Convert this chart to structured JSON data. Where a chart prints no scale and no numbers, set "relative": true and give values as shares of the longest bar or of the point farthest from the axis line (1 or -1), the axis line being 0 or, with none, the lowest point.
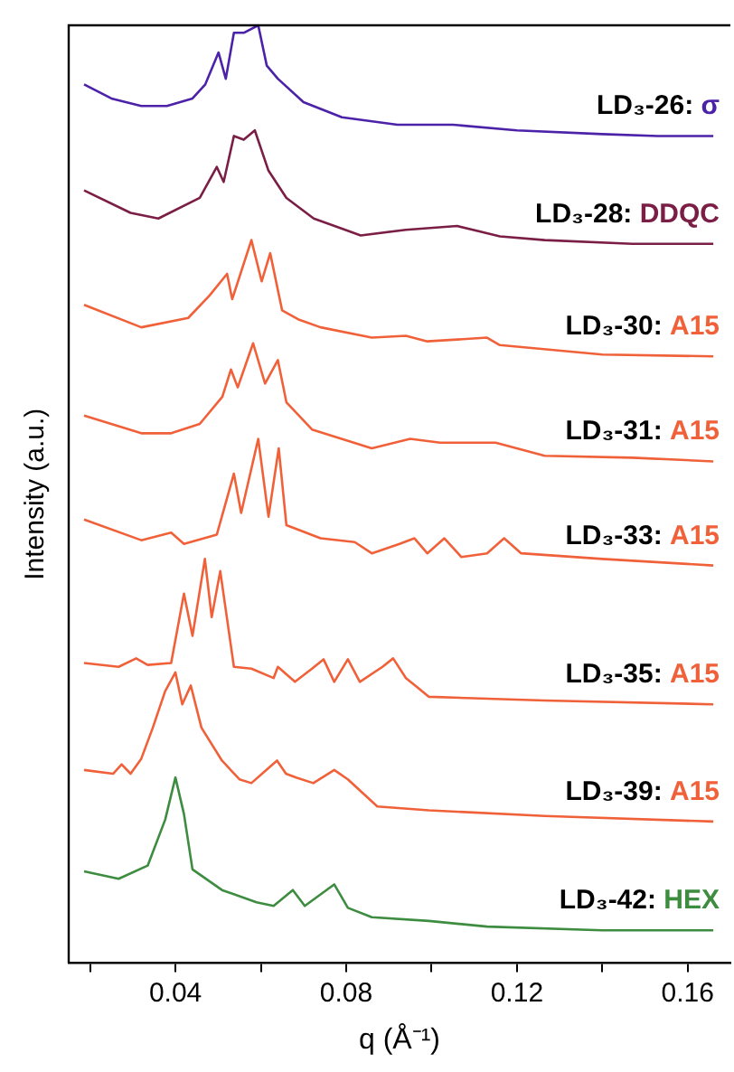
{
  "chart_data": {
    "type": "line",
    "relative": true,
    "xlabel": "q (Å⁻¹)",
    "ylabel": "Intensity (a.u.)",
    "xlim": [
      0.015,
      0.17
    ],
    "xticks": [
      {
        "value": 0.02,
        "label": null
      },
      0.04,
      {
        "value": 0.06,
        "label": null
      },
      0.08,
      {
        "value": 0.1,
        "label": null
      },
      0.12,
      {
        "value": 0.14,
        "label": null
      },
      0.16
    ],
    "grid": false,
    "legend": false,
    "marker": "none",
    "line_style": "solid",
    "tick_labels": "x",
    "series": [
      {
        "name": "LD₃-26: σ",
        "color": "#4b22a8",
        "x": [
          0.0186,
          0.025,
          0.032,
          0.038,
          0.044,
          0.047,
          0.0501,
          0.0518,
          0.0537,
          0.056,
          0.0594,
          0.0614,
          0.064,
          0.07,
          0.079,
          0.092,
          0.105,
          0.12,
          0.14,
          0.153,
          0.166
        ],
        "values": [
          0.937,
          0.922,
          0.914,
          0.914,
          0.922,
          0.937,
          0.971,
          0.943,
          0.992,
          0.992,
          1.0,
          0.957,
          0.943,
          0.918,
          0.902,
          0.894,
          0.894,
          0.888,
          0.884,
          0.882,
          0.882
        ]
      },
      {
        "name": "LD₃-28: DDQC",
        "color": "#7b1e45",
        "x": [
          0.0186,
          0.0295,
          0.036,
          0.0457,
          0.0497,
          0.0513,
          0.0537,
          0.056,
          0.0586,
          0.0618,
          0.066,
          0.0724,
          0.0834,
          0.094,
          0.106,
          0.116,
          0.1265,
          0.147,
          0.166
        ],
        "values": [
          0.824,
          0.8,
          0.794,
          0.816,
          0.849,
          0.833,
          0.882,
          0.878,
          0.888,
          0.845,
          0.816,
          0.794,
          0.776,
          0.782,
          0.786,
          0.775,
          0.771,
          0.767,
          0.767
        ]
      },
      {
        "name": "LD₃-30: A15",
        "color": "#f0613a",
        "x": [
          0.0186,
          0.032,
          0.043,
          0.048,
          0.0521,
          0.0533,
          0.0578,
          0.0602,
          0.0622,
          0.065,
          0.069,
          0.074,
          0.086,
          0.094,
          0.099,
          0.113,
          0.116,
          0.14,
          0.166
        ],
        "values": [
          0.702,
          0.678,
          0.688,
          0.712,
          0.735,
          0.708,
          0.771,
          0.727,
          0.757,
          0.696,
          0.686,
          0.678,
          0.667,
          0.669,
          0.663,
          0.667,
          0.659,
          0.649,
          0.647
        ]
      },
      {
        "name": "LD₃-31: A15",
        "color": "#f0613a",
        "x": [
          0.0186,
          0.032,
          0.039,
          0.0457,
          0.051,
          0.053,
          0.0546,
          0.0582,
          0.061,
          0.064,
          0.066,
          0.072,
          0.086,
          0.095,
          0.102,
          0.115,
          0.1265,
          0.147,
          0.166
        ],
        "values": [
          0.584,
          0.565,
          0.565,
          0.575,
          0.604,
          0.633,
          0.614,
          0.661,
          0.618,
          0.643,
          0.598,
          0.569,
          0.549,
          0.559,
          0.555,
          0.555,
          0.541,
          0.539,
          0.535
        ]
      },
      {
        "name": "LD₃-33: A15",
        "color": "#f0613a",
        "x": [
          0.0186,
          0.032,
          0.039,
          0.042,
          0.0497,
          0.0537,
          0.0554,
          0.0594,
          0.0618,
          0.0642,
          0.066,
          0.074,
          0.082,
          0.086,
          0.0925,
          0.096,
          0.099,
          0.103,
          0.107,
          0.113,
          0.117,
          0.121,
          0.14,
          0.166
        ],
        "values": [
          0.473,
          0.451,
          0.459,
          0.447,
          0.457,
          0.522,
          0.48,
          0.559,
          0.476,
          0.549,
          0.467,
          0.453,
          0.449,
          0.437,
          0.447,
          0.453,
          0.437,
          0.453,
          0.433,
          0.437,
          0.453,
          0.437,
          0.431,
          0.424
        ]
      },
      {
        "name": "LD₃-35: A15",
        "color": "#f0613a",
        "x": [
          0.0186,
          0.0267,
          0.0308,
          0.0335,
          0.039,
          0.042,
          0.044,
          0.0469,
          0.0485,
          0.0505,
          0.0537,
          0.0578,
          0.063,
          0.064,
          0.068,
          0.072,
          0.0747,
          0.0772,
          0.0804,
          0.0832,
          0.0885,
          0.091,
          0.094,
          0.0967,
          0.0994,
          0.1265,
          0.166
        ],
        "values": [
          0.32,
          0.316,
          0.325,
          0.318,
          0.32,
          0.394,
          0.349,
          0.431,
          0.369,
          0.418,
          0.316,
          0.314,
          0.304,
          0.316,
          0.3,
          0.314,
          0.324,
          0.3,
          0.324,
          0.3,
          0.316,
          0.325,
          0.304,
          0.294,
          0.284,
          0.28,
          0.276
        ]
      },
      {
        "name": "LD₃-39: A15",
        "color": "#f0613a",
        "x": [
          0.0186,
          0.0254,
          0.0274,
          0.0295,
          0.032,
          0.0347,
          0.0376,
          0.04,
          0.0416,
          0.0436,
          0.0461,
          0.0509,
          0.055,
          0.0578,
          0.0618,
          0.0638,
          0.0659,
          0.0683,
          0.0723,
          0.0772,
          0.0804,
          0.0873,
          0.0994,
          0.1265,
          0.166
        ],
        "values": [
          0.206,
          0.202,
          0.212,
          0.202,
          0.218,
          0.251,
          0.29,
          0.31,
          0.276,
          0.296,
          0.251,
          0.216,
          0.196,
          0.192,
          0.208,
          0.216,
          0.202,
          0.198,
          0.192,
          0.206,
          0.196,
          0.167,
          0.163,
          0.157,
          0.151
        ]
      },
      {
        "name": "LD₃-42: HEX",
        "color": "#3d8c40",
        "x": [
          0.0186,
          0.0267,
          0.0335,
          0.0376,
          0.04,
          0.042,
          0.044,
          0.0509,
          0.059,
          0.063,
          0.0675,
          0.0703,
          0.0772,
          0.0804,
          0.086,
          0.0994,
          0.113,
          0.14,
          0.166
        ],
        "values": [
          0.098,
          0.09,
          0.104,
          0.153,
          0.198,
          0.159,
          0.1,
          0.078,
          0.065,
          0.061,
          0.078,
          0.061,
          0.084,
          0.059,
          0.049,
          0.045,
          0.039,
          0.035,
          0.035
        ]
      }
    ]
  }
}
